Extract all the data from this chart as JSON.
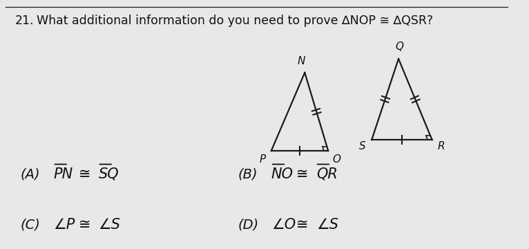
{
  "question_number": "21.",
  "question_text": "What additional information do you need to prove ∆NOP ≅ ∆QSR?",
  "bg_color": "#e8e8e8",
  "line_color": "#1a1a1a",
  "text_color": "#111111",
  "tri1": {
    "N": [
      4.55,
      2.55
    ],
    "P": [
      4.05,
      1.42
    ],
    "O": [
      4.9,
      1.42
    ]
  },
  "tri2": {
    "Q": [
      5.95,
      2.75
    ],
    "S": [
      5.55,
      1.58
    ],
    "R": [
      6.45,
      1.58
    ]
  },
  "fontsize_question": 12.5,
  "fontsize_answers": 15,
  "fontsize_labels": 11
}
